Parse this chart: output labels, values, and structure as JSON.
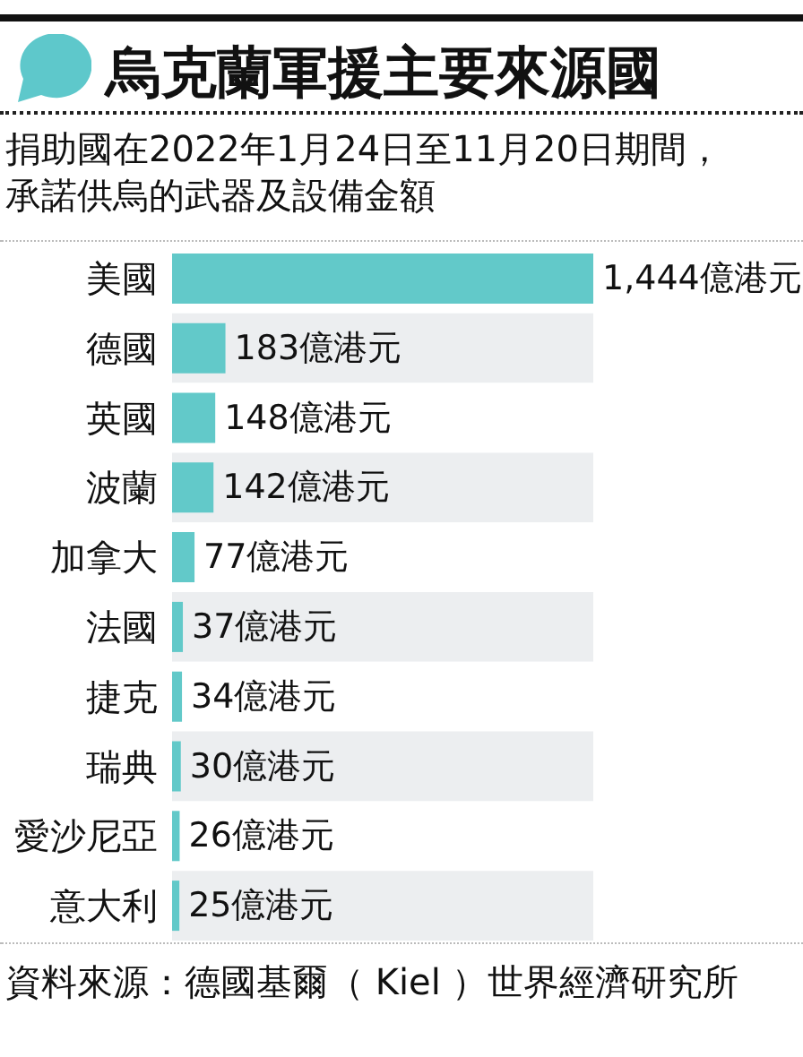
{
  "chart_data": {
    "type": "bar",
    "orientation": "horizontal",
    "title": "烏克蘭軍援主要來源國",
    "subtitle": "捐助國在2022年1月24日至11月20日期間，承諾供烏的武器及設備金額",
    "categories": [
      "美國",
      "德國",
      "英國",
      "波蘭",
      "加拿大",
      "法國",
      "捷克",
      "瑞典",
      "愛沙尼亞",
      "意大利"
    ],
    "values": [
      1444,
      183,
      148,
      142,
      77,
      37,
      34,
      30,
      26,
      25
    ],
    "color": "#62c9c9",
    "value_labels": [
      "1,444億港元",
      "183億港元",
      "148億港元",
      "142億港元",
      "77億港元",
      "37億港元",
      "34億港元",
      "30億港元",
      "26億港元",
      "25億港元"
    ],
    "annotations": [
      "資料來源：德國基爾（ Kiel ）世界經濟研究所"
    ]
  }
}
